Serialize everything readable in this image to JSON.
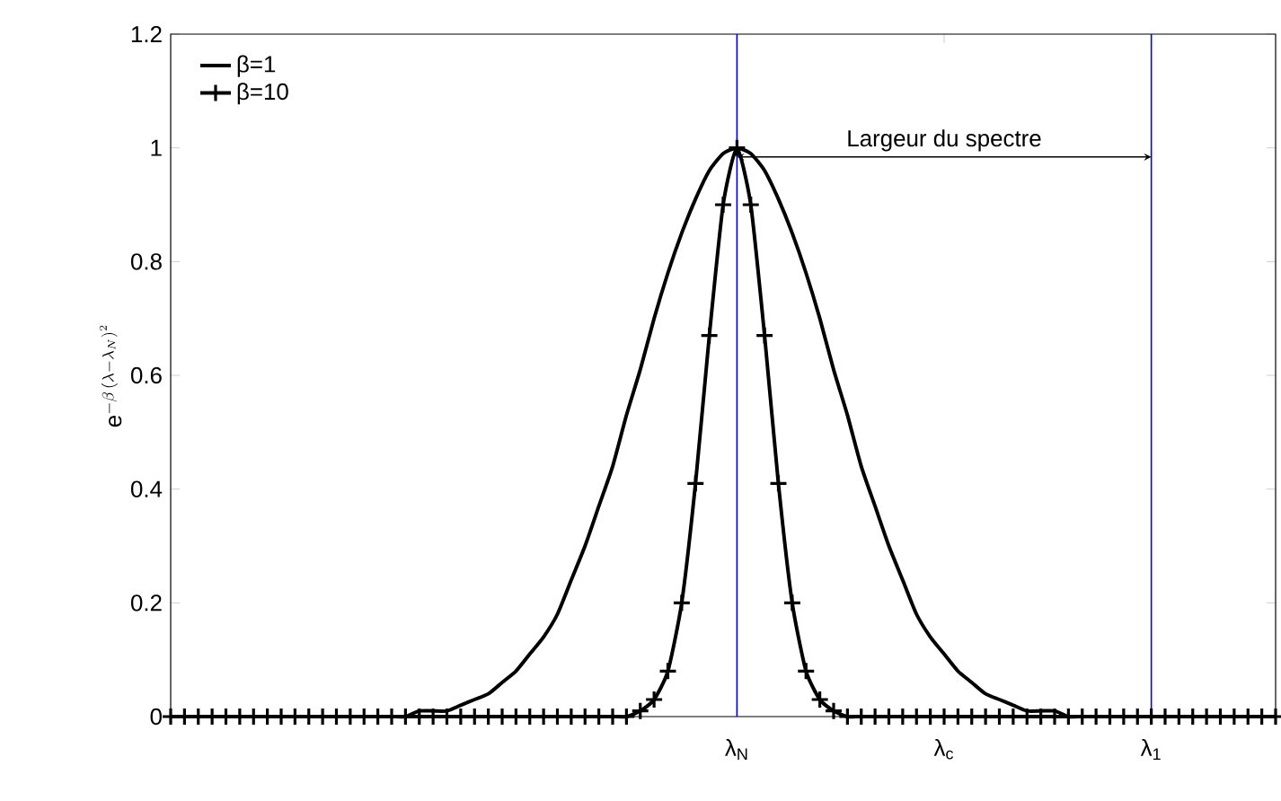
{
  "chart_data": {
    "type": "line",
    "ylabel": "\\mathrm{e}^{-\\beta\\,(\\lambda-\\lambda_N)^2}",
    "categories": [
      null,
      null,
      null,
      null,
      null,
      null,
      null,
      null,
      null,
      null,
      null,
      null,
      null,
      null,
      null,
      null,
      null,
      null,
      null,
      null,
      null,
      null,
      null,
      null,
      null,
      null,
      null,
      null,
      null,
      null,
      null,
      null,
      null,
      null,
      null,
      null,
      null,
      null,
      null,
      null,
      null,
      "λ$_{N}$",
      null,
      null,
      null,
      null,
      null,
      null,
      null,
      null,
      null,
      null,
      null,
      null,
      null,
      null,
      "λ$_{c}$",
      null,
      null,
      null,
      null,
      null,
      null,
      null,
      null,
      null,
      null,
      null,
      null,
      null,
      null,
      "λ$_{1}$",
      null,
      null,
      null,
      null,
      null,
      null,
      null,
      null,
      null
    ],
    "series": [
      {
        "name": "β=1",
        "color": "#000000",
        "marker": "none",
        "values": [
          0,
          0,
          0,
          0,
          0,
          0,
          0,
          0,
          0,
          0,
          0,
          0,
          0,
          0,
          0,
          0,
          0,
          0,
          0.01,
          0.01,
          0.01,
          0.02,
          0.03,
          0.04,
          0.06,
          0.08,
          0.11,
          0.14,
          0.18,
          0.24,
          0.3,
          0.37,
          0.44,
          0.53,
          0.61,
          0.7,
          0.78,
          0.85,
          0.91,
          0.96,
          0.99,
          1,
          0.99,
          0.96,
          0.91,
          0.85,
          0.78,
          0.7,
          0.61,
          0.53,
          0.44,
          0.37,
          0.3,
          0.24,
          0.18,
          0.14,
          0.11,
          0.08,
          0.06,
          0.04,
          0.03,
          0.02,
          0.01,
          0.01,
          0.01,
          0,
          0,
          0,
          0,
          0,
          0,
          0,
          0,
          0,
          0,
          0,
          0,
          0,
          0,
          0,
          0
        ]
      },
      {
        "name": "β=10",
        "color": "#000000",
        "marker": "cross",
        "values": [
          0,
          0,
          0,
          0,
          0,
          0,
          0,
          0,
          0,
          0,
          0,
          0,
          0,
          0,
          0,
          0,
          0,
          0,
          0,
          0,
          0,
          0,
          0,
          0,
          0,
          0,
          0,
          0,
          0,
          0,
          0,
          0,
          0,
          0,
          0.01,
          0.03,
          0.08,
          0.2,
          0.41,
          0.67,
          0.9,
          1,
          0.9,
          0.67,
          0.41,
          0.2,
          0.08,
          0.03,
          0.01,
          0,
          0,
          0,
          0,
          0,
          0,
          0,
          0,
          0,
          0,
          0,
          0,
          0,
          0,
          0,
          0,
          0,
          0,
          0,
          0,
          0,
          0,
          0,
          0,
          0,
          0,
          0,
          0,
          0,
          0,
          0,
          0
        ]
      }
    ],
    "ylim": [
      0,
      1.2
    ],
    "yticks": [
      0,
      0.2,
      0.4,
      0.6,
      0.8,
      1,
      1.2
    ],
    "ref_lines": [
      {
        "axis": "x",
        "value": "λ$_{N}$",
        "color": "#0000ff"
      },
      {
        "axis": "x",
        "value": "λ$_{1}$",
        "color": "#0000ff"
      }
    ],
    "annotations": [
      "Largeur du spectre"
    ],
    "legend": "top left"
  }
}
